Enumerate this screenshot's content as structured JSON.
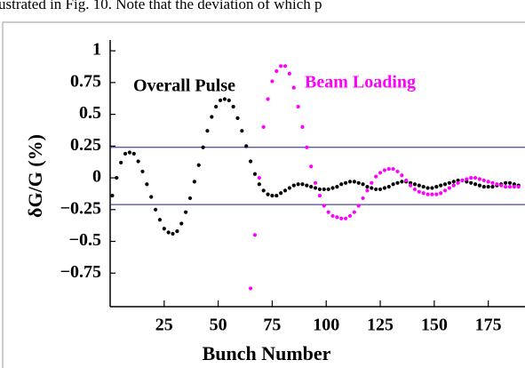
{
  "header_text": "ustrated in Fig. 10. Note that the deviation of which p",
  "chart_data": {
    "type": "scatter",
    "xlabel": "Bunch Number",
    "ylabel": "δG/G (%)",
    "xlim": [
      0,
      192
    ],
    "ylim": [
      -1,
      1.05
    ],
    "xticks": [
      25,
      50,
      75,
      100,
      125,
      150,
      175
    ],
    "yticks": [
      1,
      0.75,
      0.5,
      0.25,
      0,
      {
        "value": -0.25,
        "label": "−0.25"
      },
      {
        "value": -0.5,
        "label": "−0.5"
      },
      {
        "value": -0.75,
        "label": "−0.75"
      }
    ],
    "hlines": [
      0.24,
      -0.21
    ],
    "hline_color": "#1a1a8c",
    "x": [
      1,
      3,
      5,
      7,
      9,
      11,
      13,
      15,
      17,
      19,
      21,
      23,
      25,
      27,
      29,
      31,
      33,
      35,
      37,
      39,
      41,
      43,
      45,
      47,
      49,
      51,
      53,
      55,
      57,
      59,
      61,
      63,
      65,
      67,
      69,
      71,
      73,
      75,
      77,
      79,
      81,
      83,
      85,
      87,
      89,
      91,
      93,
      95,
      97,
      99,
      101,
      103,
      105,
      107,
      109,
      111,
      113,
      115,
      117,
      119,
      121,
      123,
      125,
      127,
      129,
      131,
      133,
      135,
      137,
      139,
      141,
      143,
      145,
      147,
      149,
      151,
      153,
      155,
      157,
      159,
      161,
      163,
      165,
      167,
      169,
      171,
      173,
      175,
      177,
      179,
      181,
      183,
      185,
      187,
      189
    ],
    "series": [
      {
        "name": "Overall Pulse",
        "color": "#000000",
        "values": [
          -0.14,
          0.0,
          0.12,
          0.19,
          0.2,
          0.19,
          0.13,
          0.05,
          -0.05,
          -0.15,
          -0.25,
          -0.33,
          -0.4,
          -0.43,
          -0.44,
          -0.42,
          -0.36,
          -0.27,
          -0.16,
          -0.03,
          0.1,
          0.24,
          0.37,
          0.48,
          0.56,
          0.61,
          0.62,
          0.61,
          0.56,
          0.47,
          0.37,
          0.25,
          0.13,
          0.03,
          -0.05,
          -0.1,
          -0.13,
          -0.14,
          -0.14,
          -0.12,
          -0.1,
          -0.08,
          -0.06,
          -0.05,
          -0.05,
          -0.06,
          -0.07,
          -0.08,
          -0.09,
          -0.09,
          -0.09,
          -0.08,
          -0.07,
          -0.05,
          -0.04,
          -0.03,
          -0.03,
          -0.04,
          -0.05,
          -0.07,
          -0.08,
          -0.09,
          -0.09,
          -0.08,
          -0.07,
          -0.05,
          -0.04,
          -0.03,
          -0.03,
          -0.04,
          -0.05,
          -0.06,
          -0.07,
          -0.08,
          -0.08,
          -0.07,
          -0.06,
          -0.05,
          -0.04,
          -0.03,
          -0.02,
          -0.02,
          -0.03,
          -0.04,
          -0.05,
          -0.06,
          -0.07,
          -0.07,
          -0.07,
          -0.06,
          -0.05,
          -0.04,
          -0.04,
          -0.05,
          -0.06
        ]
      },
      {
        "name": "Beam Loading",
        "color": "#ff00ff",
        "values": [
          null,
          null,
          null,
          null,
          null,
          null,
          null,
          null,
          null,
          null,
          null,
          null,
          null,
          null,
          null,
          null,
          null,
          null,
          null,
          null,
          null,
          null,
          null,
          null,
          null,
          null,
          null,
          null,
          null,
          null,
          null,
          null,
          -0.87,
          -0.45,
          0.0,
          0.4,
          0.62,
          0.76,
          0.84,
          0.88,
          0.88,
          0.82,
          0.71,
          0.56,
          0.4,
          0.24,
          0.09,
          -0.04,
          -0.14,
          -0.22,
          -0.27,
          -0.3,
          -0.31,
          -0.32,
          -0.32,
          -0.3,
          -0.27,
          -0.22,
          -0.16,
          -0.1,
          -0.04,
          0.01,
          0.04,
          0.06,
          0.07,
          0.07,
          0.05,
          0.02,
          -0.02,
          -0.06,
          -0.09,
          -0.11,
          -0.12,
          -0.13,
          -0.13,
          -0.13,
          -0.12,
          -0.1,
          -0.08,
          -0.06,
          -0.04,
          -0.02,
          -0.01,
          0.0,
          0.0,
          -0.01,
          -0.02,
          -0.03,
          -0.04,
          -0.05,
          -0.06,
          -0.07,
          -0.07,
          -0.07,
          -0.07
        ]
      }
    ]
  }
}
